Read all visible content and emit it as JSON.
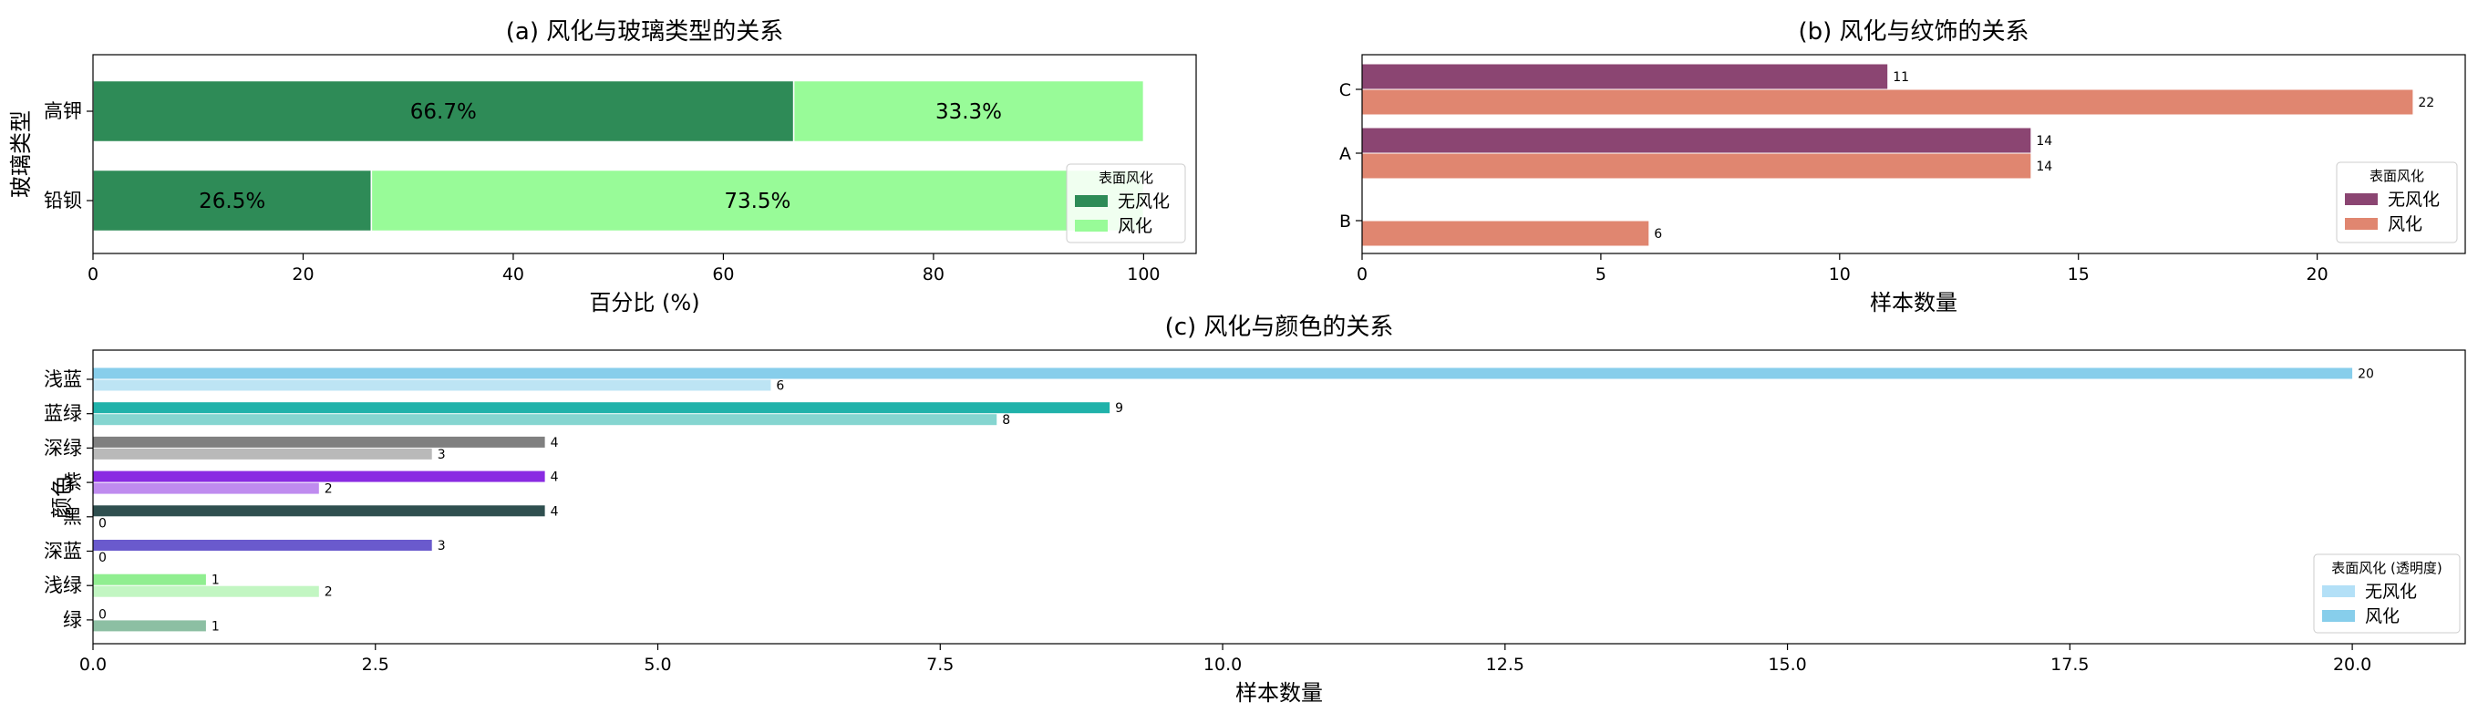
{
  "chart_data": [
    {
      "type": "bar",
      "orientation": "horizontal",
      "stacked": true,
      "title": "(a) 风化与玻璃类型的关系",
      "xlabel": "百分比 (%)",
      "ylabel": "玻璃类型",
      "categories": [
        "高钾",
        "铅钡"
      ],
      "series": [
        {
          "name": "无风化",
          "color": "#2e8b57",
          "values": [
            66.7,
            26.5
          ],
          "labels": [
            "66.7%",
            "26.5%"
          ]
        },
        {
          "name": "风化",
          "color": "#98fb98",
          "values": [
            33.3,
            73.5
          ],
          "labels": [
            "33.3%",
            "73.5%"
          ]
        }
      ],
      "xlim": [
        0,
        105
      ],
      "xticks": [
        "0",
        "20",
        "40",
        "60",
        "80",
        "100"
      ],
      "legend_title": "表面风化",
      "legend_position": "lower-right",
      "grid": false
    },
    {
      "type": "bar",
      "orientation": "horizontal",
      "title": "(b) 风化与纹饰的关系",
      "xlabel": "样本数量",
      "ylabel": "",
      "categories": [
        "C",
        "A",
        "B"
      ],
      "series": [
        {
          "name": "无风化",
          "color": "#8b4572",
          "values": [
            11,
            14,
            null
          ],
          "labels": [
            "11",
            "14",
            ""
          ]
        },
        {
          "name": "风化",
          "color": "#e08670",
          "values": [
            22,
            14,
            6
          ],
          "labels": [
            "22",
            "14",
            "6"
          ]
        }
      ],
      "xlim": [
        0,
        23.1
      ],
      "xticks": [
        "0",
        "5",
        "10",
        "15",
        "20"
      ],
      "legend_title": "表面风化",
      "legend_position": "lower-right",
      "grid": false
    },
    {
      "type": "bar",
      "orientation": "horizontal",
      "title": "(c) 风化与颜色的关系",
      "xlabel": "样本数量",
      "ylabel": "颜色",
      "categories": [
        {
          "name": "浅蓝",
          "color": "#87ceeb"
        },
        {
          "name": "蓝绿",
          "color": "#20b2aa"
        },
        {
          "name": "深绿",
          "color": "#808080"
        },
        {
          "name": "紫",
          "color": "#8a2be2"
        },
        {
          "name": "黑",
          "color": "#2f4f4f"
        },
        {
          "name": "深蓝",
          "color": "#6a5acd"
        },
        {
          "name": "浅绿",
          "color": "#90ee90"
        },
        {
          "name": "绿",
          "color": "#2e8b57"
        }
      ],
      "series": [
        {
          "name": "风化",
          "opacity": 1.0,
          "values": [
            20,
            9,
            4,
            4,
            4,
            3,
            1,
            0
          ],
          "labels": [
            "20",
            "9",
            "4",
            "4",
            "4",
            "3",
            "1",
            "0"
          ]
        },
        {
          "name": "无风化",
          "opacity": 0.55,
          "values": [
            6,
            8,
            3,
            2,
            0,
            0,
            2,
            1
          ],
          "labels": [
            "6",
            "8",
            "3",
            "2",
            "0",
            "0",
            "2",
            "1"
          ]
        }
      ],
      "xlim": [
        0,
        21
      ],
      "xticks": [
        "0.0",
        "2.5",
        "5.0",
        "7.5",
        "10.0",
        "12.5",
        "15.0",
        "17.5",
        "20.0"
      ],
      "legend_title": "表面风化 (透明度)",
      "legend_items": [
        {
          "name": "无风化",
          "color": "#b3e0f7"
        },
        {
          "name": "风化",
          "color": "#87ceeb"
        }
      ],
      "legend_position": "lower-right",
      "grid": false
    }
  ]
}
